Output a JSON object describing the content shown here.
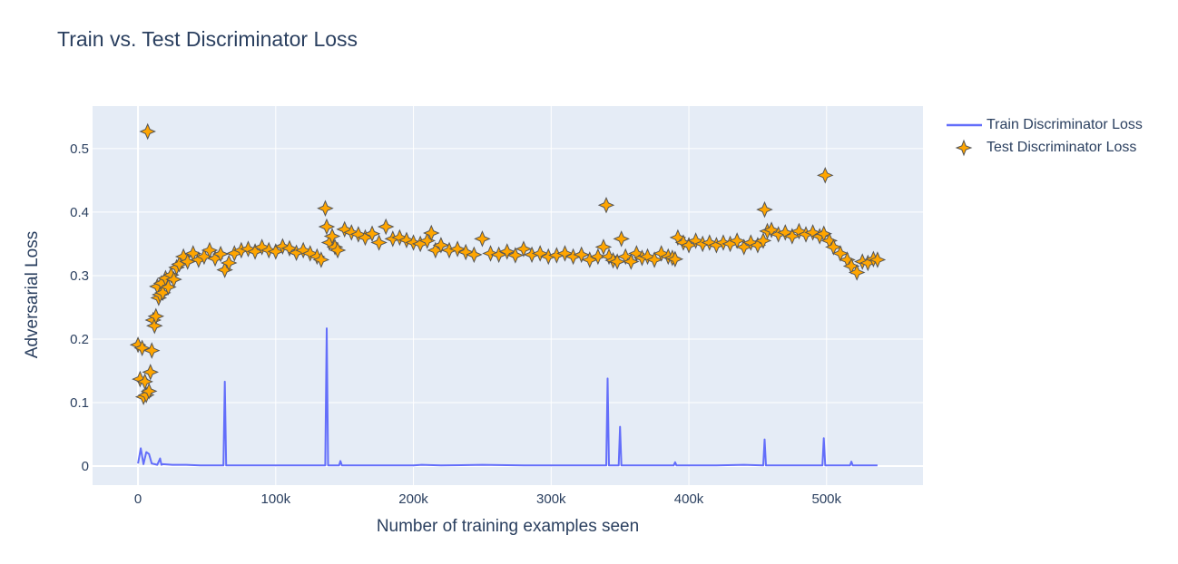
{
  "chart_data": {
    "type": "scatter",
    "title": "Train vs. Test Discriminator Loss",
    "xlabel": "Number of training examples seen",
    "ylabel": "Adversarial Loss",
    "xlim": [
      -33000,
      570000
    ],
    "ylim": [
      -0.03,
      0.567
    ],
    "x_ticks": [
      0,
      100000,
      200000,
      300000,
      400000,
      500000
    ],
    "x_tick_labels": [
      "0",
      "100k",
      "200k",
      "300k",
      "400k",
      "500k"
    ],
    "y_ticks": [
      0,
      0.1,
      0.2,
      0.3,
      0.4,
      0.5
    ],
    "y_tick_labels": [
      "0",
      "0.1",
      "0.2",
      "0.3",
      "0.4",
      "0.5"
    ],
    "grid": true,
    "legend_position": "right",
    "colors": {
      "plot_bg": "#E5ECF6",
      "grid": "#FFFFFF",
      "train": "#636EFA",
      "test_fill": "#FFA500",
      "test_line": "#555555",
      "text": "#2A3F5F"
    },
    "series": [
      {
        "name": "Train Discriminator Loss",
        "mode": "line",
        "x": [
          0,
          2000,
          4000,
          6000,
          8000,
          10000,
          12000,
          14000,
          16000,
          17000,
          18000,
          25000,
          35000,
          45000,
          55000,
          62000,
          63000,
          64000,
          80000,
          100000,
          120000,
          136000,
          137000,
          138000,
          146000,
          147000,
          148000,
          160000,
          180000,
          200000,
          206000,
          220000,
          250000,
          280000,
          300000,
          320000,
          340000,
          341000,
          342000,
          343000,
          349000,
          350000,
          351000,
          360000,
          380000,
          389000,
          390000,
          391000,
          420000,
          440000,
          454000,
          455000,
          456000,
          470000,
          497000,
          498000,
          499000,
          517000,
          518000,
          519000,
          537000
        ],
        "y": [
          0.004,
          0.028,
          0.003,
          0.022,
          0.019,
          0.004,
          0.003,
          0.002,
          0.012,
          0.002,
          0.003,
          0.002,
          0.002,
          0.001,
          0.001,
          0.001,
          0.133,
          0.001,
          0.001,
          0.001,
          0.001,
          0.001,
          0.217,
          0.001,
          0.001,
          0.008,
          0.001,
          0.001,
          0.001,
          0.001,
          0.002,
          0.001,
          0.002,
          0.001,
          0.001,
          0.001,
          0.001,
          0.138,
          0.001,
          0.001,
          0.001,
          0.062,
          0.001,
          0.001,
          0.001,
          0.001,
          0.006,
          0.001,
          0.001,
          0.002,
          0.001,
          0.042,
          0.001,
          0.001,
          0.001,
          0.044,
          0.001,
          0.001,
          0.007,
          0.001,
          0.001
        ]
      },
      {
        "name": "Test Discriminator Loss",
        "mode": "markers",
        "x": [
          0,
          1500,
          3000,
          4000,
          5000,
          6000,
          7000,
          8000,
          9000,
          10000,
          11000,
          12000,
          13000,
          14000,
          15000,
          16000,
          17000,
          18000,
          20000,
          22000,
          24000,
          26000,
          28000,
          30000,
          33000,
          36000,
          40000,
          44000,
          48000,
          52000,
          56000,
          60000,
          63000,
          66000,
          70000,
          75000,
          80000,
          85000,
          90000,
          95000,
          100000,
          105000,
          110000,
          115000,
          120000,
          125000,
          130000,
          133000,
          136000,
          137000,
          139000,
          141000,
          143000,
          145000,
          150000,
          155000,
          160000,
          165000,
          170000,
          175000,
          180000,
          185000,
          190000,
          195000,
          200000,
          205000,
          210000,
          213000,
          216000,
          220000,
          226000,
          232000,
          238000,
          244000,
          250000,
          256000,
          262000,
          268000,
          274000,
          280000,
          286000,
          292000,
          298000,
          304000,
          310000,
          316000,
          322000,
          328000,
          334000,
          338000,
          340000,
          342000,
          345000,
          348000,
          351000,
          354000,
          358000,
          362000,
          366000,
          370000,
          375000,
          380000,
          385000,
          388000,
          390000,
          392000,
          396000,
          400000,
          405000,
          410000,
          415000,
          420000,
          425000,
          430000,
          435000,
          440000,
          445000,
          450000,
          454000,
          455000,
          457000,
          460000,
          465000,
          470000,
          475000,
          480000,
          485000,
          490000,
          495000,
          498000,
          499000,
          502000,
          505000,
          510000,
          515000,
          518000,
          522000,
          526000,
          530000,
          534000,
          537000
        ],
        "y": [
          0.191,
          0.137,
          0.186,
          0.109,
          0.133,
          0.112,
          0.527,
          0.118,
          0.148,
          0.182,
          0.23,
          0.221,
          0.236,
          0.283,
          0.265,
          0.27,
          0.288,
          0.273,
          0.296,
          0.282,
          0.301,
          0.294,
          0.313,
          0.318,
          0.33,
          0.322,
          0.335,
          0.325,
          0.33,
          0.34,
          0.327,
          0.334,
          0.309,
          0.32,
          0.335,
          0.34,
          0.342,
          0.338,
          0.345,
          0.34,
          0.338,
          0.346,
          0.343,
          0.336,
          0.34,
          0.335,
          0.33,
          0.325,
          0.406,
          0.377,
          0.352,
          0.362,
          0.345,
          0.34,
          0.373,
          0.368,
          0.365,
          0.36,
          0.366,
          0.352,
          0.377,
          0.358,
          0.36,
          0.356,
          0.352,
          0.35,
          0.355,
          0.367,
          0.34,
          0.348,
          0.34,
          0.342,
          0.337,
          0.333,
          0.358,
          0.335,
          0.333,
          0.338,
          0.332,
          0.342,
          0.333,
          0.335,
          0.33,
          0.332,
          0.335,
          0.33,
          0.333,
          0.325,
          0.33,
          0.345,
          0.411,
          0.33,
          0.324,
          0.322,
          0.358,
          0.33,
          0.322,
          0.335,
          0.328,
          0.33,
          0.325,
          0.335,
          0.33,
          0.328,
          0.326,
          0.36,
          0.352,
          0.348,
          0.355,
          0.35,
          0.352,
          0.348,
          0.352,
          0.35,
          0.355,
          0.345,
          0.352,
          0.348,
          0.355,
          0.404,
          0.37,
          0.372,
          0.365,
          0.368,
          0.362,
          0.37,
          0.365,
          0.368,
          0.362,
          0.366,
          0.458,
          0.355,
          0.345,
          0.335,
          0.325,
          0.315,
          0.305,
          0.322,
          0.32,
          0.326,
          0.325
        ]
      }
    ]
  }
}
